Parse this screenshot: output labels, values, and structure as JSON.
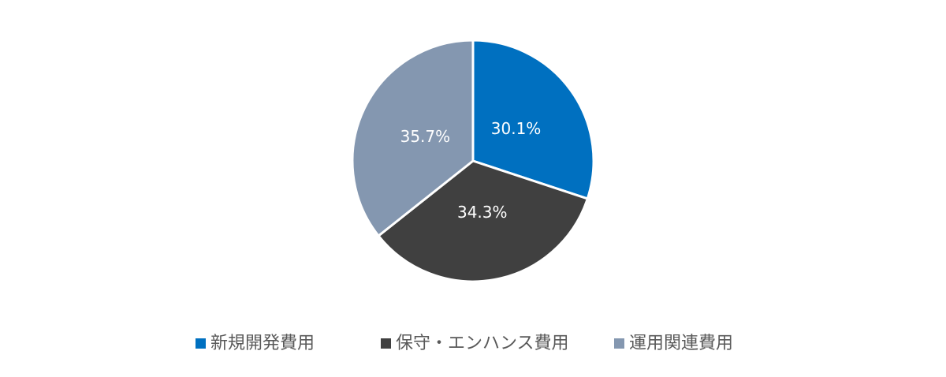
{
  "chart_data": {
    "type": "pie",
    "categories": [
      "新規開発費用",
      "保守・エンハンス費用",
      "運用関連費用"
    ],
    "values": [
      30.1,
      34.3,
      35.7
    ],
    "value_labels": [
      "30.1%",
      "34.3%",
      "35.7%"
    ],
    "colors": [
      "#0070c0",
      "#404040",
      "#8497b0"
    ],
    "legend": "bottom"
  }
}
